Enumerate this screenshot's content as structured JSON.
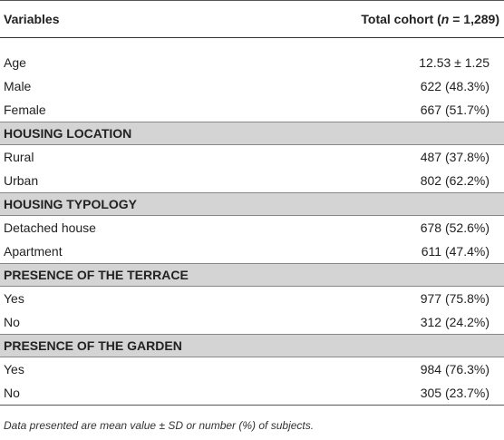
{
  "table": {
    "columns": [
      "Variables",
      [
        "Total cohort (",
        "n",
        " = 1,289)"
      ]
    ],
    "rows": [
      [
        "Age",
        "12.53 ± 1.25"
      ],
      [
        "Male",
        "622 (48.3%)"
      ],
      [
        "Female",
        "667 (51.7%)"
      ],
      [
        "HOUSING LOCATION"
      ],
      [
        "Rural",
        "487 (37.8%)"
      ],
      [
        "Urban",
        "802 (62.2%)"
      ],
      [
        "HOUSING TYPOLOGY"
      ],
      [
        "Detached house",
        "678 (52.6%)"
      ],
      [
        "Apartment",
        "611 (47.4%)"
      ],
      [
        "PRESENCE OF THE TERRACE"
      ],
      [
        "Yes",
        "977 (75.8%)"
      ],
      [
        "No",
        "312 (24.2%)"
      ],
      [
        "PRESENCE OF THE GARDEN"
      ],
      [
        "Yes",
        "984 (76.3%)"
      ],
      [
        "No",
        "305 (23.7%)"
      ]
    ]
  },
  "footnote": "Data presented are mean value ± SD or number (%) of subjects."
}
